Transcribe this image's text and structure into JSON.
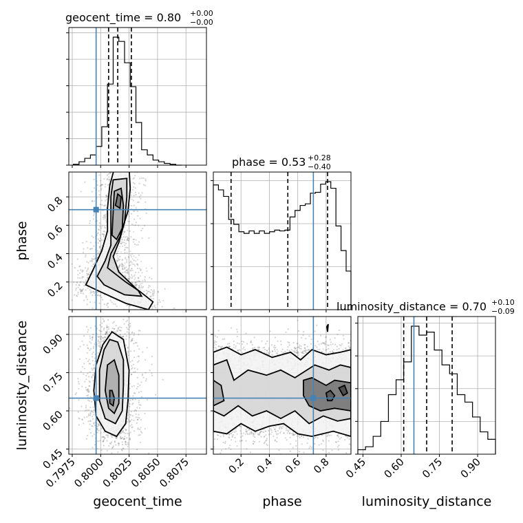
{
  "chart_data": {
    "type": "corner",
    "parameters": [
      "geocent_time",
      "phase",
      "luminosity_distance"
    ],
    "truths": {
      "geocent_time": 0.7996,
      "phase": 0.71,
      "luminosity_distance": 0.65
    },
    "axis_ranges": {
      "geocent_time": [
        0.7972,
        0.8093
      ],
      "phase": [
        0.005,
        0.975
      ],
      "luminosity_distance": [
        0.43,
        0.97
      ]
    },
    "ticks": {
      "geocent_time": [
        0.7975,
        0.8,
        0.8025,
        0.805,
        0.8075
      ],
      "phase": [
        0.2,
        0.4,
        0.6,
        0.8
      ],
      "luminosity_distance": [
        0.45,
        0.6,
        0.75,
        0.9
      ]
    },
    "tick_labels": {
      "geocent_time": [
        "0.7975",
        "0.8000",
        "0.8025",
        "0.8050",
        "0.8075"
      ],
      "phase": [
        "0.2",
        "0.4",
        "0.6",
        "0.8"
      ],
      "luminosity_distance": [
        "0.45",
        "0.60",
        "0.75",
        "0.90"
      ]
    },
    "axis_labels": {
      "geocent_time": "geocent_time",
      "phase": "phase",
      "luminosity_distance": "luminosity_distance"
    },
    "titles": {
      "geocent_time": {
        "name": "geocent_time",
        "median": "0.80",
        "plus": "+0.00",
        "minus": "−0.00"
      },
      "phase": {
        "name": "phase",
        "median": "0.53",
        "plus": "+0.28",
        "minus": "−0.40"
      },
      "luminosity_distance": {
        "name": "luminosity_distance",
        "median": "0.70",
        "plus": "+0.10",
        "minus": "−0.09"
      }
    },
    "quantiles": {
      "geocent_time": [
        0.8007,
        0.8015,
        0.8027
      ],
      "phase": [
        0.13,
        0.53,
        0.81
      ],
      "luminosity_distance": [
        0.61,
        0.7,
        0.8
      ]
    },
    "histograms": {
      "geocent_time": {
        "edges": [
          0.7976,
          0.7981,
          0.7986,
          0.7991,
          0.7996,
          0.8001,
          0.8006,
          0.8011,
          0.8016,
          0.8021,
          0.8026,
          0.8031,
          0.8036,
          0.8041,
          0.8046,
          0.8051,
          0.8056,
          0.8061,
          0.8066,
          0.8071
        ],
        "counts": [
          1,
          4,
          8,
          12,
          22,
          45,
          95,
          150,
          145,
          120,
          92,
          50,
          18,
          12,
          6,
          4,
          2,
          1,
          0
        ]
      },
      "phase": {
        "edges": [
          0.005,
          0.041,
          0.077,
          0.113,
          0.149,
          0.185,
          0.221,
          0.257,
          0.293,
          0.329,
          0.365,
          0.401,
          0.437,
          0.473,
          0.509,
          0.545,
          0.581,
          0.617,
          0.653,
          0.689,
          0.725,
          0.761,
          0.797,
          0.833,
          0.869,
          0.905,
          0.941,
          0.975
        ],
        "counts": [
          152,
          146,
          138,
          110,
          104,
          95,
          93,
          96,
          93,
          96,
          93,
          95,
          97,
          96,
          97,
          113,
          121,
          127,
          129,
          142,
          143,
          153,
          156,
          148,
          102,
          72,
          47
        ]
      },
      "luminosity_distance": {
        "edges": [
          0.43,
          0.46,
          0.49,
          0.52,
          0.55,
          0.58,
          0.61,
          0.64,
          0.67,
          0.7,
          0.73,
          0.76,
          0.79,
          0.82,
          0.85,
          0.88,
          0.91,
          0.94,
          0.97
        ],
        "counts": [
          3,
          5,
          12,
          22,
          40,
          50,
          62,
          86,
          80,
          82,
          70,
          60,
          54,
          40,
          35,
          25,
          15,
          10
        ]
      }
    },
    "contours_2d": [
      {
        "x": "geocent_time",
        "y": "phase",
        "levels": [
          [
            [
              0.7987,
              0.18
            ],
            [
              0.7993,
              0.28
            ],
            [
              0.8001,
              0.42
            ],
            [
              0.8006,
              0.56
            ],
            [
              0.8006,
              0.72
            ],
            [
              0.8008,
              0.88
            ],
            [
              0.8012,
              1.0
            ],
            [
              0.8025,
              1.0
            ],
            [
              0.8026,
              0.86
            ],
            [
              0.8024,
              0.7
            ],
            [
              0.8017,
              0.52
            ],
            [
              0.8009,
              0.4
            ],
            [
              0.8006,
              0.3
            ],
            [
              0.8022,
              0.2
            ],
            [
              0.8035,
              0.13
            ],
            [
              0.8046,
              0.06
            ],
            [
              0.8042,
              0.005
            ],
            [
              0.8022,
              0.05
            ],
            [
              0.8,
              0.13
            ],
            [
              0.7987,
              0.18
            ]
          ],
          [
            [
              0.7997,
              0.24
            ],
            [
              0.8004,
              0.35
            ],
            [
              0.8009,
              0.46
            ],
            [
              0.8009,
              0.62
            ],
            [
              0.8009,
              0.8
            ],
            [
              0.8011,
              0.92
            ],
            [
              0.8023,
              0.93
            ],
            [
              0.8023,
              0.8
            ],
            [
              0.8021,
              0.62
            ],
            [
              0.8016,
              0.48
            ],
            [
              0.8011,
              0.38
            ],
            [
              0.8016,
              0.27
            ],
            [
              0.8033,
              0.14
            ],
            [
              0.8036,
              0.1
            ],
            [
              0.8021,
              0.11
            ],
            [
              0.8003,
              0.18
            ],
            [
              0.7997,
              0.24
            ]
          ],
          [
            [
              0.801,
              0.53
            ],
            [
              0.8011,
              0.7
            ],
            [
              0.8012,
              0.84
            ],
            [
              0.8018,
              0.86
            ],
            [
              0.802,
              0.74
            ],
            [
              0.8019,
              0.58
            ],
            [
              0.8014,
              0.5
            ],
            [
              0.801,
              0.53
            ]
          ],
          [
            [
              0.8013,
              0.74
            ],
            [
              0.8015,
              0.82
            ],
            [
              0.8018,
              0.8
            ],
            [
              0.8017,
              0.72
            ],
            [
              0.8013,
              0.74
            ]
          ]
        ]
      },
      {
        "x": "geocent_time",
        "y": "luminosity_distance",
        "levels": [
          [
            [
              0.8002,
              0.86
            ],
            [
              0.7996,
              0.78
            ],
            [
              0.7994,
              0.68
            ],
            [
              0.7996,
              0.58
            ],
            [
              0.8004,
              0.52
            ],
            [
              0.8014,
              0.5
            ],
            [
              0.8022,
              0.55
            ],
            [
              0.8024,
              0.64
            ],
            [
              0.8025,
              0.76
            ],
            [
              0.802,
              0.88
            ],
            [
              0.801,
              0.91
            ],
            [
              0.8002,
              0.86
            ]
          ],
          [
            [
              0.8003,
              0.84
            ],
            [
              0.7999,
              0.76
            ],
            [
              0.7999,
              0.64
            ],
            [
              0.8004,
              0.57
            ],
            [
              0.8013,
              0.55
            ],
            [
              0.8019,
              0.6
            ],
            [
              0.802,
              0.7
            ],
            [
              0.802,
              0.8
            ],
            [
              0.8015,
              0.87
            ],
            [
              0.8008,
              0.88
            ],
            [
              0.8003,
              0.84
            ]
          ],
          [
            [
              0.8006,
              0.78
            ],
            [
              0.8004,
              0.68
            ],
            [
              0.8007,
              0.61
            ],
            [
              0.8012,
              0.59
            ],
            [
              0.8016,
              0.63
            ],
            [
              0.8016,
              0.74
            ],
            [
              0.8012,
              0.8
            ],
            [
              0.8006,
              0.78
            ]
          ],
          [
            [
              0.8008,
              0.68
            ],
            [
              0.8008,
              0.63
            ],
            [
              0.8011,
              0.62
            ],
            [
              0.8012,
              0.65
            ],
            [
              0.801,
              0.68
            ],
            [
              0.8008,
              0.68
            ]
          ]
        ]
      },
      {
        "x": "phase",
        "y": "luminosity_distance",
        "levels": [
          [
            [
              0.005,
              0.83
            ],
            [
              0.1,
              0.85
            ],
            [
              0.2,
              0.82
            ],
            [
              0.3,
              0.84
            ],
            [
              0.42,
              0.81
            ],
            [
              0.55,
              0.83
            ],
            [
              0.62,
              0.8
            ],
            [
              0.7,
              0.84
            ],
            [
              0.8,
              0.82
            ],
            [
              0.9,
              0.83
            ],
            [
              0.975,
              0.84
            ],
            [
              0.975,
              0.5
            ],
            [
              0.85,
              0.52
            ],
            [
              0.7,
              0.5
            ],
            [
              0.6,
              0.51
            ],
            [
              0.5,
              0.55
            ],
            [
              0.4,
              0.54
            ],
            [
              0.3,
              0.52
            ],
            [
              0.2,
              0.55
            ],
            [
              0.1,
              0.51
            ],
            [
              0.005,
              0.52
            ]
          ],
          [
            [
              0.005,
              0.78
            ],
            [
              0.1,
              0.8
            ],
            [
              0.15,
              0.72
            ],
            [
              0.25,
              0.76
            ],
            [
              0.38,
              0.74
            ],
            [
              0.48,
              0.76
            ],
            [
              0.58,
              0.73
            ],
            [
              0.72,
              0.78
            ],
            [
              0.82,
              0.76
            ],
            [
              0.9,
              0.78
            ],
            [
              0.975,
              0.77
            ],
            [
              0.975,
              0.57
            ],
            [
              0.88,
              0.56
            ],
            [
              0.78,
              0.58
            ],
            [
              0.68,
              0.55
            ],
            [
              0.58,
              0.6
            ],
            [
              0.48,
              0.57
            ],
            [
              0.38,
              0.6
            ],
            [
              0.28,
              0.58
            ],
            [
              0.18,
              0.62
            ],
            [
              0.08,
              0.58
            ],
            [
              0.005,
              0.6
            ]
          ],
          [
            [
              0.005,
              0.72
            ],
            [
              0.06,
              0.7
            ],
            [
              0.08,
              0.64
            ],
            [
              0.005,
              0.62
            ]
          ],
          [
            [
              0.64,
              0.72
            ],
            [
              0.7,
              0.73
            ],
            [
              0.8,
              0.7
            ],
            [
              0.86,
              0.72
            ],
            [
              0.975,
              0.71
            ],
            [
              0.975,
              0.6
            ],
            [
              0.86,
              0.61
            ],
            [
              0.76,
              0.6
            ],
            [
              0.68,
              0.62
            ],
            [
              0.64,
              0.66
            ],
            [
              0.64,
              0.72
            ]
          ],
          [
            [
              0.8,
              0.67
            ],
            [
              0.83,
              0.68
            ],
            [
              0.86,
              0.66
            ],
            [
              0.84,
              0.64
            ],
            [
              0.81,
              0.64
            ],
            [
              0.8,
              0.67
            ]
          ],
          [
            [
              0.89,
              0.69
            ],
            [
              0.93,
              0.7
            ],
            [
              0.95,
              0.67
            ],
            [
              0.92,
              0.66
            ],
            [
              0.89,
              0.69
            ]
          ],
          [
            [
              0.805,
              0.93
            ],
            [
              0.815,
              0.94
            ],
            [
              0.81,
              0.91
            ],
            [
              0.805,
              0.93
            ]
          ]
        ]
      }
    ]
  }
}
